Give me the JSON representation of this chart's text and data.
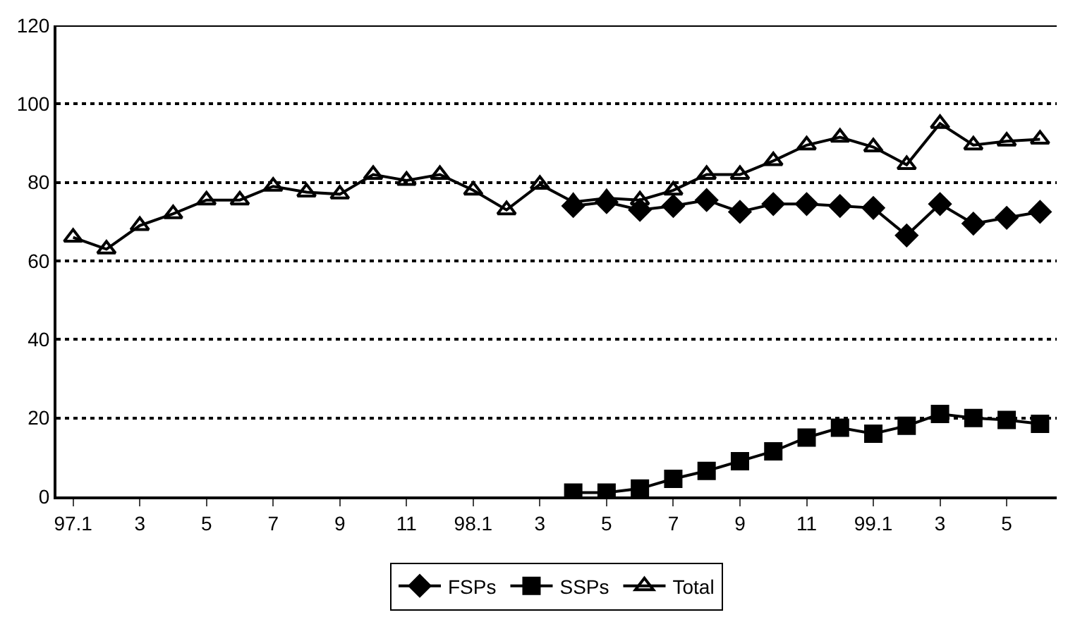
{
  "chart_data": {
    "type": "line",
    "categories": [
      "97.1",
      null,
      "3",
      null,
      "5",
      null,
      "7",
      null,
      "9",
      null,
      "11",
      null,
      "98.1",
      null,
      "3",
      null,
      "5",
      null,
      "7",
      null,
      "9",
      null,
      "11",
      null,
      "99.1",
      null,
      "3",
      null,
      "5",
      null
    ],
    "series": [
      {
        "name": "FSPs",
        "color": "#000000",
        "marker": "diamond",
        "values": [
          null,
          null,
          null,
          null,
          null,
          null,
          null,
          null,
          null,
          null,
          null,
          null,
          null,
          null,
          null,
          74,
          75,
          73,
          74,
          75.5,
          72.5,
          74.5,
          74.5,
          74,
          73.5,
          66.5,
          74.5,
          69.5,
          71,
          72.5
        ]
      },
      {
        "name": "SSPs",
        "color": "#000000",
        "marker": "square",
        "values": [
          null,
          null,
          null,
          null,
          null,
          null,
          null,
          null,
          null,
          null,
          null,
          null,
          null,
          null,
          null,
          1,
          1,
          2,
          4.5,
          6.5,
          9,
          11.5,
          15,
          17.5,
          16,
          18,
          21,
          20,
          19.5,
          18.5
        ]
      },
      {
        "name": "Total",
        "color": "#000000",
        "marker": "triangle",
        "values": [
          66,
          63,
          69,
          72,
          75.5,
          75.5,
          79,
          77.5,
          77,
          82,
          80.5,
          82,
          78,
          73,
          79.5,
          75,
          76,
          75.5,
          78,
          82,
          82,
          85.5,
          89.5,
          91.5,
          89,
          84.5,
          95,
          89.5,
          90.5,
          91
        ]
      }
    ],
    "ylim": [
      0,
      120
    ],
    "yticks": [
      0,
      20,
      40,
      60,
      80,
      100,
      120
    ],
    "grid": "y",
    "legend": "bottom",
    "line_style": "solid"
  }
}
